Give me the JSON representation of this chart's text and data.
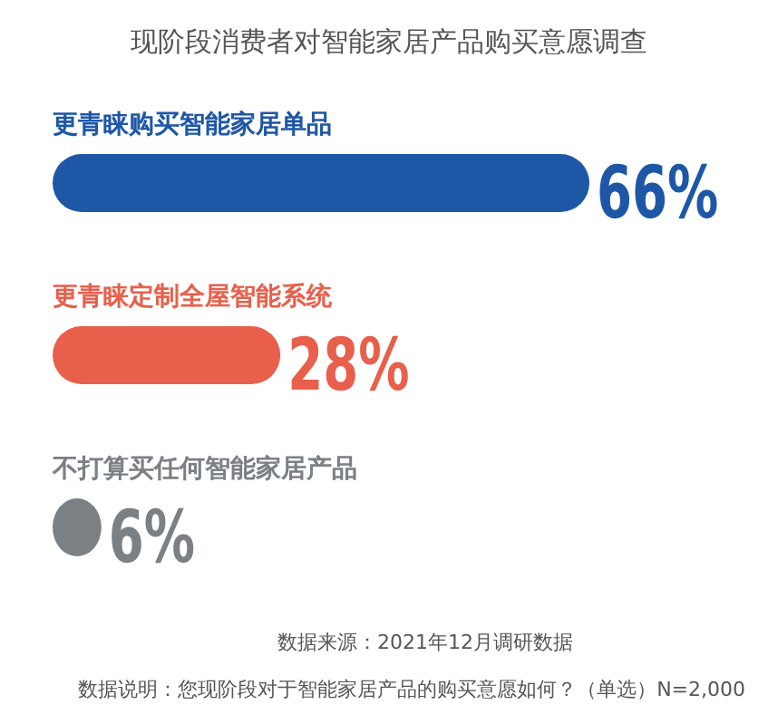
{
  "chart_data": {
    "type": "bar",
    "orientation": "horizontal",
    "title": "现阶段消费者对智能家居产品购买意愿调查",
    "categories": [
      "更青睐购买智能家居单品",
      "更青睐定制全屋智能系统",
      "不打算买任何智能家居产品"
    ],
    "values": [
      66,
      28,
      6
    ],
    "colors": [
      "#1e57a6",
      "#e8604c",
      "#7b8085"
    ],
    "value_labels": [
      "66%",
      "28%",
      "6%"
    ],
    "annotations": [
      "数据来源：2021年12月调研数据",
      "数据说明：您现阶段对于智能家居产品的购买意愿如何？（单选）N=2,000"
    ]
  }
}
